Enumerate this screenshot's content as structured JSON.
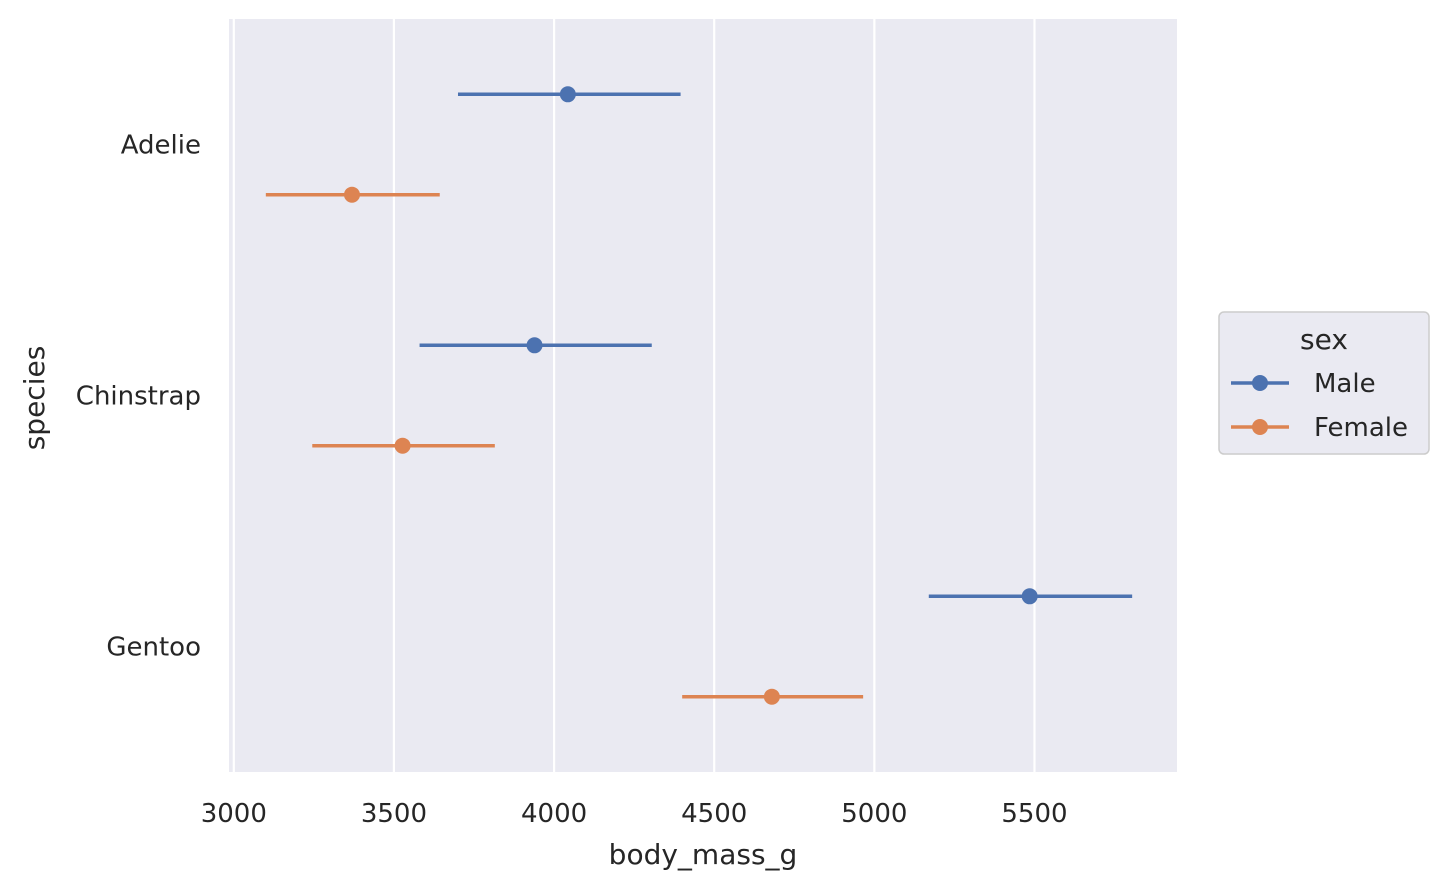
{
  "chart_data": {
    "type": "scatter",
    "style": "pointplot-with-error-bars",
    "xlabel": "body_mass_g",
    "ylabel": "species",
    "xlim": [
      2985,
      5945
    ],
    "x_ticks": [
      3000,
      3500,
      4000,
      4500,
      5000,
      5500
    ],
    "categories": [
      "Adelie",
      "Chinstrap",
      "Gentoo"
    ],
    "grid": true,
    "background_color": "#eaeaf2",
    "grid_color": "#ffffff",
    "legend": {
      "title": "sex",
      "placement": "right"
    },
    "series": [
      {
        "name": "Male",
        "color": "#4c72b0",
        "values": [
          4043,
          3939,
          5485
        ],
        "ci_low": [
          3700,
          3580,
          5170
        ],
        "ci_high": [
          4395,
          4305,
          5805
        ]
      },
      {
        "name": "Female",
        "color": "#dd8452",
        "values": [
          3369,
          3527,
          4680
        ],
        "ci_low": [
          3100,
          3245,
          4400
        ],
        "ci_high": [
          3643,
          3815,
          4965
        ]
      }
    ]
  }
}
